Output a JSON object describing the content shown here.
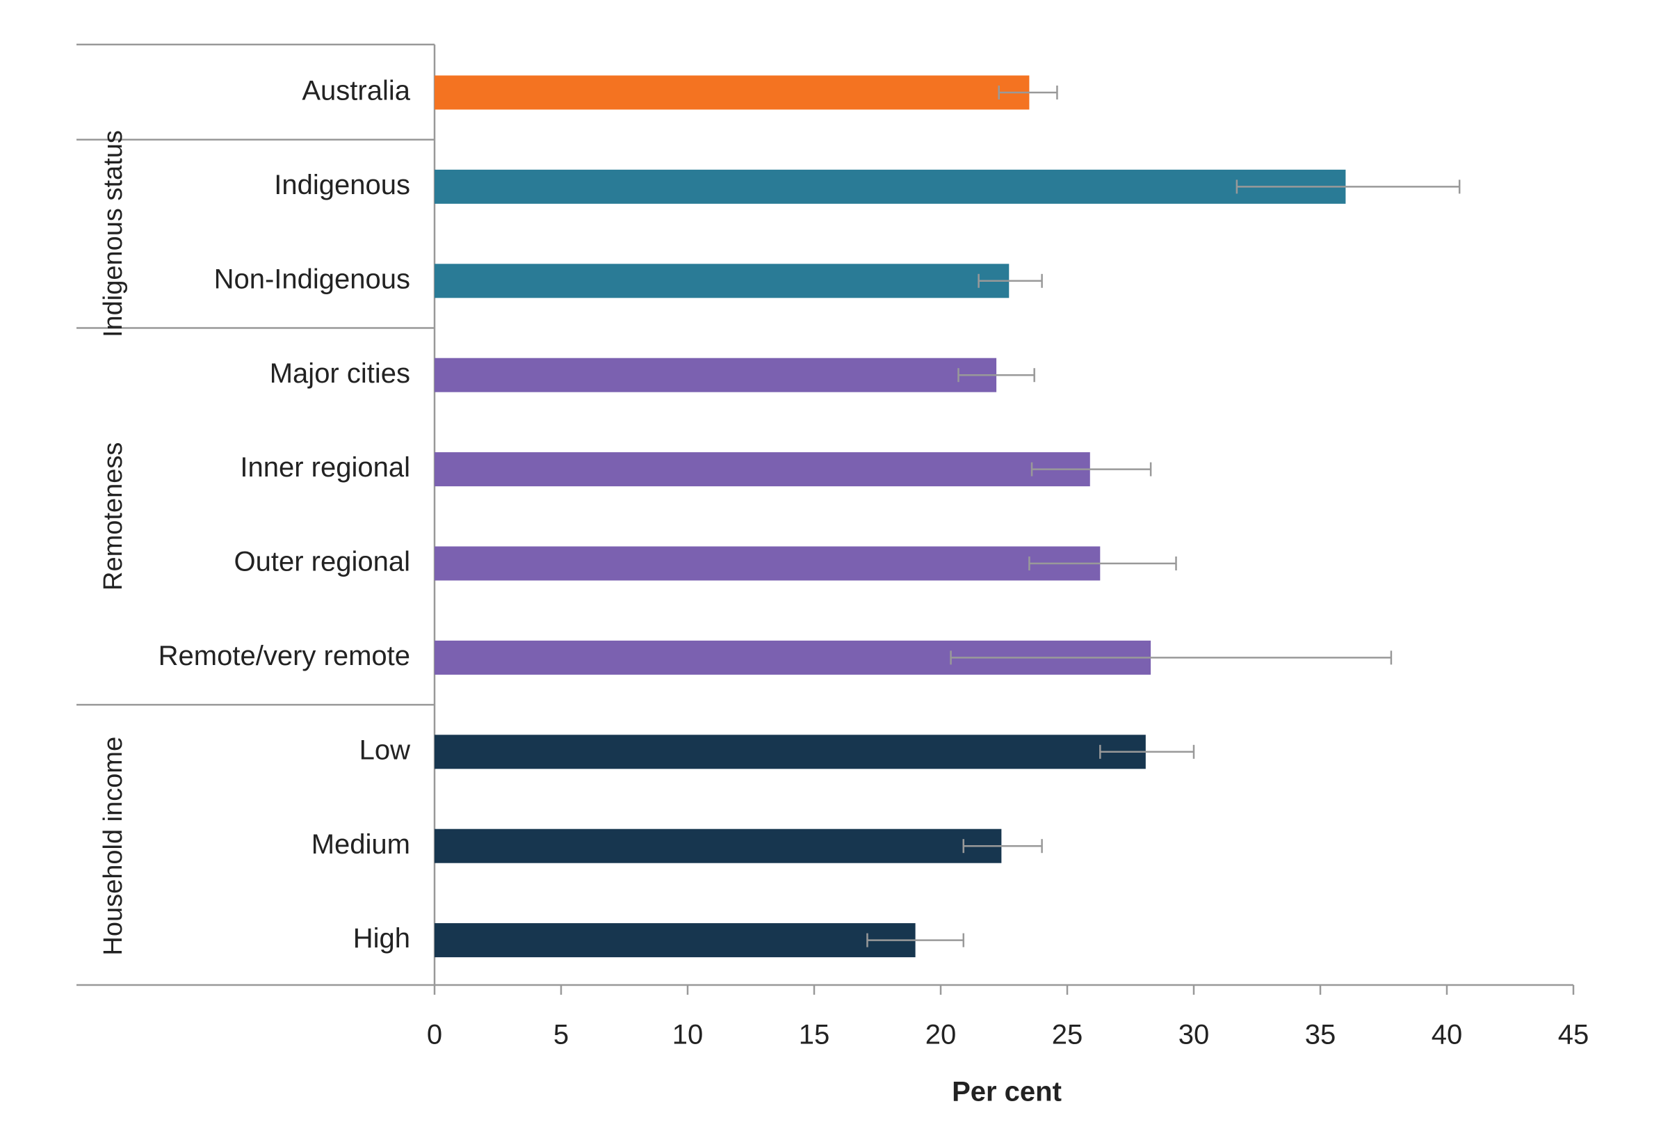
{
  "chart_data": {
    "type": "bar",
    "orientation": "horizontal",
    "x_label": "Per cent",
    "categories": [
      "Australia",
      "Indigenous",
      "Non-Indigenous",
      "Major cities",
      "Inner regional",
      "Outer regional",
      "Remote/very remote",
      "Low",
      "Medium",
      "High"
    ],
    "category_groups": [
      null,
      "Indigenous status",
      "Indigenous status",
      "Remoteness",
      "Remoteness",
      "Remoteness",
      "Remoteness",
      "Household income",
      "Household income",
      "Household income"
    ],
    "values": [
      23.5,
      36.0,
      22.7,
      22.2,
      25.9,
      26.3,
      28.3,
      28.1,
      22.4,
      19.0
    ],
    "ci_low": [
      22.3,
      31.7,
      21.5,
      20.7,
      23.6,
      23.5,
      20.4,
      26.3,
      20.9,
      17.1
    ],
    "ci_high": [
      24.6,
      40.5,
      24.0,
      23.7,
      28.3,
      29.3,
      37.8,
      30.0,
      24.0,
      20.9
    ],
    "colors": [
      "#f47321",
      "#2a7b96",
      "#2a7b96",
      "#7b61b0",
      "#7b61b0",
      "#7b61b0",
      "#7b61b0",
      "#17364f",
      "#17364f",
      "#17364f"
    ],
    "error_color": "#999999",
    "xlim": [
      0,
      45
    ],
    "xticks": [
      0,
      5,
      10,
      15,
      20,
      25,
      30,
      35,
      40,
      45
    ],
    "grid": false
  }
}
